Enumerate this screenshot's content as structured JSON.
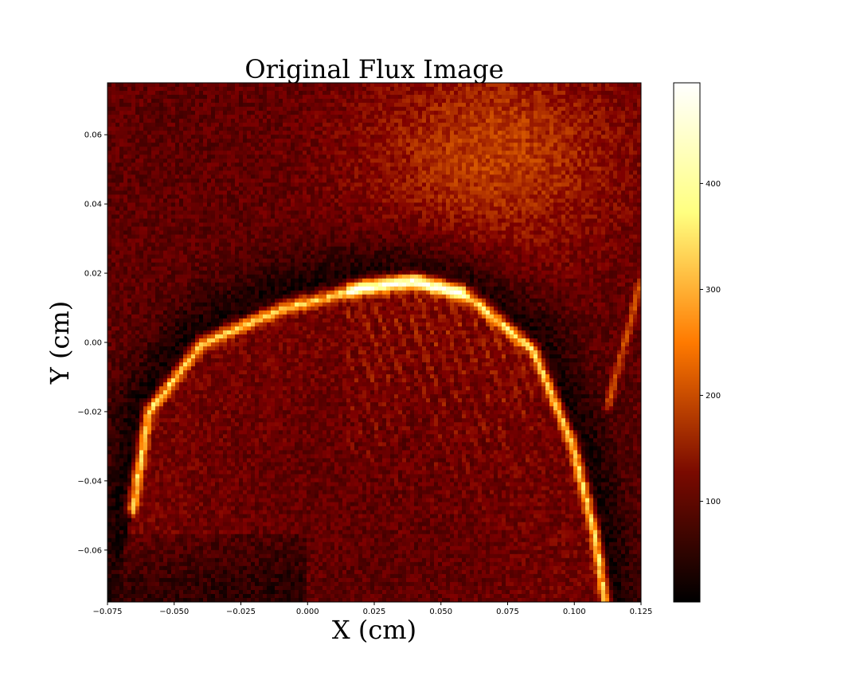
{
  "chart_data": {
    "type": "heatmap",
    "title": "Original Flux Image",
    "xlabel": "X (cm)",
    "ylabel": "Y (cm)",
    "xlim": [
      -0.075,
      0.125
    ],
    "ylim": [
      -0.075,
      0.075
    ],
    "x_ticks": [
      "−0.075",
      "−0.050",
      "−0.025",
      "0.000",
      "0.025",
      "0.050",
      "0.075",
      "0.100",
      "0.125"
    ],
    "y_ticks": [
      "−0.06",
      "−0.04",
      "−0.02",
      "0.00",
      "0.02",
      "0.04",
      "0.06"
    ],
    "colormap": "afmhot",
    "colorbar": {
      "range": [
        5,
        495
      ],
      "ticks": [
        "100",
        "200",
        "300",
        "400"
      ]
    },
    "features": [
      {
        "kind": "bright-arc",
        "description_points_x": [
          -0.066,
          -0.06,
          -0.04,
          -0.01,
          0.02,
          0.04,
          0.06,
          0.085,
          0.1,
          0.108,
          0.112
        ],
        "points_y": [
          -0.048,
          -0.02,
          0.0,
          0.01,
          0.016,
          0.018,
          0.014,
          -0.002,
          -0.03,
          -0.055,
          -0.075
        ],
        "peak_value": 480
      }
    ],
    "grid": false
  }
}
